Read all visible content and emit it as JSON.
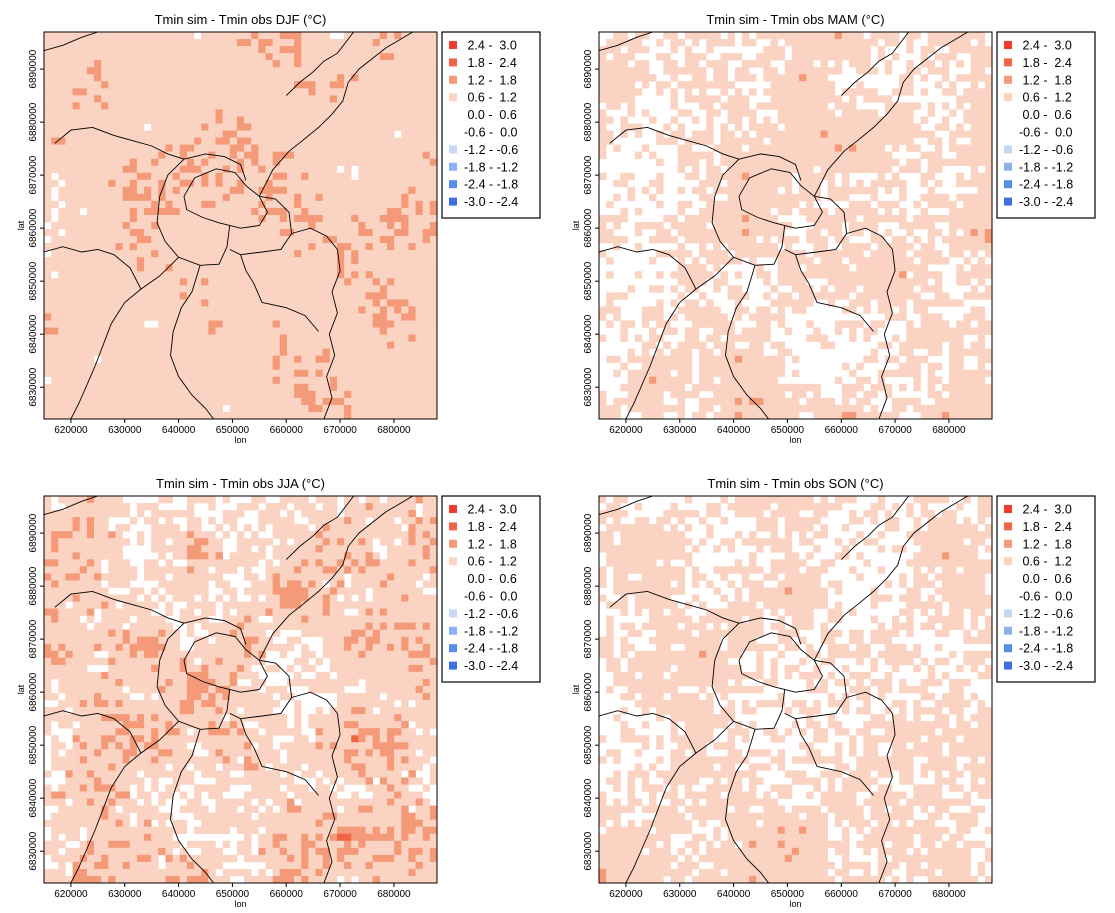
{
  "legend": {
    "classes": [
      {
        "label": " 2.4 -  3.0",
        "color": "#ee3b30"
      },
      {
        "label": " 1.8 -  2.4",
        "color": "#f06445"
      },
      {
        "label": " 1.2 -  1.8",
        "color": "#f49a78"
      },
      {
        "label": " 0.6 -  1.2",
        "color": "#fbd3c2"
      },
      {
        "label": " 0.0 -  0.6",
        "color": "#ffffff"
      },
      {
        "label": "-0.6 -  0.0",
        "color": "#ffffff"
      },
      {
        "label": "-1.2 - -0.6",
        "color": "#c8d7f5"
      },
      {
        "label": "-1.8 - -1.2",
        "color": "#8fb0ef"
      },
      {
        "label": "-2.4 - -1.8",
        "color": "#5a8eec"
      },
      {
        "label": "-3.0 - -2.4",
        "color": "#3f6fe6"
      }
    ]
  },
  "axes": {
    "xlabel": "lon",
    "ylabel": "lat",
    "xticks": [
      "620000",
      "630000",
      "640000",
      "650000",
      "660000",
      "670000",
      "680000"
    ],
    "xtick_values": [
      620000,
      630000,
      640000,
      650000,
      660000,
      670000,
      680000
    ],
    "yticks": [
      "6830000",
      "6840000",
      "6850000",
      "6860000",
      "6870000",
      "6880000",
      "6890000"
    ],
    "ytick_values": [
      6830000,
      6840000,
      6850000,
      6860000,
      6870000,
      6880000,
      6890000
    ],
    "xlim": [
      615000,
      688000
    ],
    "ylim": [
      6824000,
      6897000
    ]
  },
  "panels": [
    {
      "title": "Tmin sim - Tmin obs DJF (°C)",
      "season": "DJF",
      "mix": [
        0.005,
        0.06,
        0.23,
        0.58,
        0.125,
        0,
        0,
        0,
        0,
        0
      ],
      "seed": 11
    },
    {
      "title": "Tmin sim - Tmin obs MAM (°C)",
      "season": "MAM",
      "mix": [
        0.0,
        0.02,
        0.13,
        0.45,
        0.39,
        0,
        0.005,
        0.005,
        0,
        0
      ],
      "seed": 23
    },
    {
      "title": "Tmin sim - Tmin obs JJA (°C)",
      "season": "JJA",
      "mix": [
        0.005,
        0.08,
        0.25,
        0.35,
        0.28,
        0,
        0.02,
        0.01,
        0.005,
        0.0
      ],
      "seed": 37
    },
    {
      "title": "Tmin sim - Tmin obs SON (°C)",
      "season": "SON",
      "mix": [
        0.0,
        0.005,
        0.15,
        0.45,
        0.39,
        0,
        0.005,
        0,
        0,
        0
      ],
      "seed": 53
    }
  ]
}
